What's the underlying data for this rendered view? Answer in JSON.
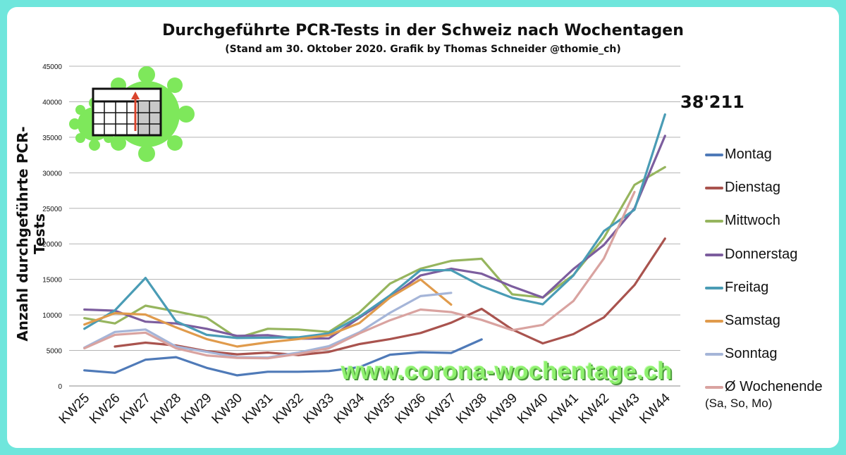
{
  "chart_data": {
    "type": "line",
    "title": "Durchgeführte PCR-Tests in der Schweiz nach Wochentagen",
    "subtitle": "(Stand am 30. Oktober 2020. Grafik by Thomas Schneider @thomie_ch)",
    "ylabel": "Anzahl durchgeführte PCR-Tests",
    "xlabel": "",
    "ylim": [
      0,
      45000
    ],
    "yticks": [
      "0",
      "5000",
      "10000",
      "15000",
      "20000",
      "25000",
      "30000",
      "35000",
      "40000",
      "45000"
    ],
    "grid": true,
    "legend": "right",
    "categories": [
      "KW25",
      "KW26",
      "KW27",
      "KW28",
      "KW29",
      "KW30",
      "KW31",
      "KW32",
      "KW33",
      "KW34",
      "KW35",
      "KW36",
      "KW37",
      "KW38",
      "KW39",
      "KW40",
      "KW41",
      "KW42",
      "KW43",
      "KW44"
    ],
    "annotation": "38'211",
    "series": [
      {
        "name": "Montag",
        "color": "#4f7ab8",
        "values": [
          2200,
          1850,
          3700,
          4050,
          2550,
          1500,
          2000,
          2000,
          2100,
          2650,
          4400,
          4750,
          4650,
          6550,
          null,
          null,
          null,
          null,
          null,
          null
        ]
      },
      {
        "name": "Dienstag",
        "color": "#a9534e",
        "values": [
          null,
          5550,
          6100,
          5700,
          4900,
          4450,
          4700,
          4350,
          4800,
          5900,
          6600,
          7450,
          8900,
          10850,
          7950,
          6000,
          7300,
          9650,
          14200,
          20750
        ]
      },
      {
        "name": "Mittwoch",
        "color": "#96b55e",
        "values": [
          9550,
          8800,
          11300,
          10500,
          9600,
          6750,
          8050,
          7950,
          7600,
          10350,
          14400,
          16500,
          17600,
          17900,
          12900,
          12450,
          15600,
          20850,
          28300,
          30800
        ]
      },
      {
        "name": "Donnerstag",
        "color": "#7c5d9e",
        "values": [
          10750,
          10600,
          9050,
          8800,
          8050,
          7050,
          7150,
          6650,
          6700,
          9600,
          12450,
          15550,
          16500,
          15800,
          14000,
          12450,
          16450,
          19850,
          25000,
          35200
        ]
      },
      {
        "name": "Freitag",
        "color": "#4a9cb5",
        "values": [
          8050,
          10650,
          15200,
          9100,
          7200,
          6750,
          6800,
          6850,
          7400,
          9750,
          12750,
          16300,
          16300,
          14050,
          12400,
          11500,
          15550,
          21800,
          24800,
          38211
        ]
      },
      {
        "name": "Samstag",
        "color": "#e09b4c",
        "values": [
          8650,
          10250,
          10050,
          8250,
          6600,
          5550,
          6150,
          6600,
          7150,
          8850,
          12450,
          15000,
          11450,
          null,
          null,
          null,
          null,
          null,
          null,
          null
        ]
      },
      {
        "name": "Sonntag",
        "color": "#a5b5d8",
        "values": [
          5400,
          7600,
          7950,
          5550,
          4800,
          4050,
          4000,
          4700,
          5600,
          7550,
          10300,
          12650,
          13100,
          null,
          null,
          null,
          null,
          null,
          null,
          null
        ]
      },
      {
        "name": "Ø Wochenende",
        "name_line2": "(Sa, So, Mo)",
        "color": "#d9a3a0",
        "values": [
          5300,
          7200,
          7500,
          5300,
          4300,
          3950,
          3900,
          4500,
          5300,
          7400,
          9250,
          10750,
          10400,
          9300,
          7850,
          8600,
          11950,
          17950,
          27300,
          null
        ]
      }
    ]
  }
}
